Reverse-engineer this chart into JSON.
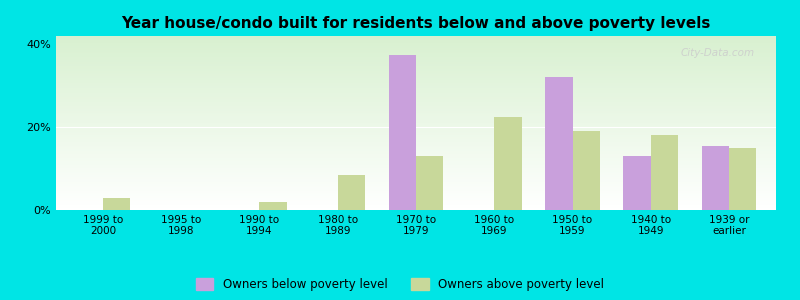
{
  "title": "Year house/condo built for residents below and above poverty levels",
  "categories": [
    "1999 to\n2000",
    "1995 to\n1998",
    "1990 to\n1994",
    "1980 to\n1989",
    "1970 to\n1979",
    "1960 to\n1969",
    "1950 to\n1959",
    "1940 to\n1949",
    "1939 or\nearlier"
  ],
  "below_poverty": [
    0.0,
    0.0,
    0.0,
    0.0,
    37.5,
    0.0,
    32.0,
    13.0,
    15.5
  ],
  "above_poverty": [
    3.0,
    0.0,
    2.0,
    8.5,
    13.0,
    22.5,
    19.0,
    18.0,
    15.0
  ],
  "below_color": "#c9a0dc",
  "above_color": "#c8d89a",
  "outer_bg": "#00e5e5",
  "ylim": [
    0,
    42
  ],
  "yticks": [
    0,
    20,
    40
  ],
  "ytick_labels": [
    "0%",
    "20%",
    "40%"
  ],
  "bar_width": 0.35,
  "legend_below_label": "Owners below poverty level",
  "legend_above_label": "Owners above poverty level",
  "watermark": "City-Data.com",
  "title_fontsize": 11,
  "tick_fontsize": 7.5,
  "legend_fontsize": 8.5
}
